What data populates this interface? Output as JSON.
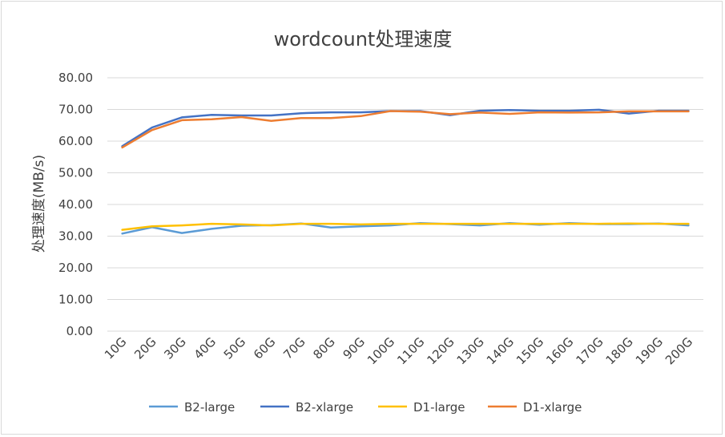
{
  "chart_data": {
    "type": "line",
    "title": "wordcount处理速度",
    "xlabel": "",
    "ylabel": "处理速度(MB/s)",
    "ylim": [
      0,
      80
    ],
    "yticks": [
      "0.00",
      "10.00",
      "20.00",
      "30.00",
      "40.00",
      "50.00",
      "60.00",
      "70.00",
      "80.00"
    ],
    "grid": true,
    "legend_position": "bottom",
    "categories": [
      "10G",
      "20G",
      "30G",
      "40G",
      "50G",
      "60G",
      "70G",
      "80G",
      "90G",
      "100G",
      "110G",
      "120G",
      "130G",
      "140G",
      "150G",
      "160G",
      "170G",
      "180G",
      "190G",
      "200G"
    ],
    "series": [
      {
        "name": "B2-large",
        "color": "#5b9bd5",
        "values": [
          30.8,
          32.8,
          31.0,
          32.3,
          33.3,
          33.5,
          34.0,
          32.7,
          33.1,
          33.4,
          34.1,
          33.8,
          33.4,
          34.1,
          33.6,
          34.1,
          33.8,
          33.8,
          34.0,
          33.4
        ]
      },
      {
        "name": "B2-xlarge",
        "color": "#4472c4",
        "values": [
          58.4,
          64.3,
          67.5,
          68.3,
          68.1,
          68.1,
          68.8,
          69.1,
          69.1,
          69.5,
          69.5,
          68.2,
          69.6,
          69.8,
          69.6,
          69.6,
          69.9,
          68.7,
          69.6,
          69.6
        ]
      },
      {
        "name": "D1-large",
        "color": "#ffc000",
        "values": [
          32.0,
          33.1,
          33.4,
          33.9,
          33.7,
          33.4,
          33.9,
          33.9,
          33.7,
          33.9,
          33.9,
          33.9,
          33.9,
          33.9,
          33.9,
          33.9,
          33.9,
          34.0,
          33.9,
          33.9
        ]
      },
      {
        "name": "D1-xlarge",
        "color": "#ed7d31",
        "values": [
          58.0,
          63.5,
          66.6,
          66.9,
          67.6,
          66.4,
          67.3,
          67.3,
          67.9,
          69.5,
          69.3,
          68.5,
          69.0,
          68.6,
          69.1,
          69.0,
          69.1,
          69.4,
          69.4,
          69.4
        ]
      }
    ]
  }
}
